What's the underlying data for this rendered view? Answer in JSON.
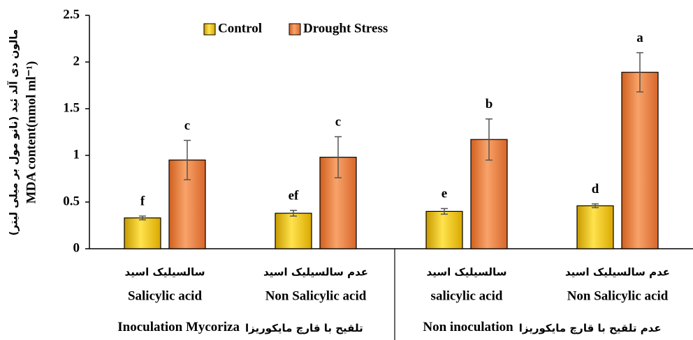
{
  "chart_data": {
    "type": "bar",
    "y_label_fa": "مالون دی آلد ئید  (نانو مول بر میلی لیتر)",
    "y_label": "MDA content(nmol ml⁻¹)",
    "categories": [
      [
        "سالسیلیک اسید",
        "Salicylic acid"
      ],
      [
        "عدم سالسیلیک اسید",
        "Non Salicylic acid"
      ],
      [
        "سالسیلیک اسید",
        "salicylic acid"
      ],
      [
        "عدم سالسیلیک اسید",
        "Non Salicylic acid"
      ]
    ],
    "groups": [
      {
        "label": "Inoculation Mycoriza",
        "label_fa": "تلقیح با قارچ مایکوریزا"
      },
      {
        "label": "Non inoculation",
        "label_fa": "عدم تلقیح با قارچ مایکوریزا"
      }
    ],
    "series": [
      {
        "name": "Control",
        "color": "#f5c800",
        "values": [
          0.33,
          0.38,
          0.4,
          0.46
        ],
        "errors": [
          0.02,
          0.03,
          0.03,
          0.02
        ],
        "letters": [
          "f",
          "ef",
          "e",
          "d"
        ]
      },
      {
        "name": "Drought Stress",
        "color": "#ee7d3a",
        "values": [
          0.95,
          0.98,
          1.17,
          1.89
        ],
        "errors": [
          0.21,
          0.22,
          0.22,
          0.21
        ],
        "letters": [
          "c",
          "c",
          "b",
          "a"
        ]
      }
    ],
    "ylim": [
      0,
      2.5
    ],
    "yticks": [
      0,
      0.5,
      1,
      1.5,
      2,
      2.5
    ],
    "grid": false
  }
}
